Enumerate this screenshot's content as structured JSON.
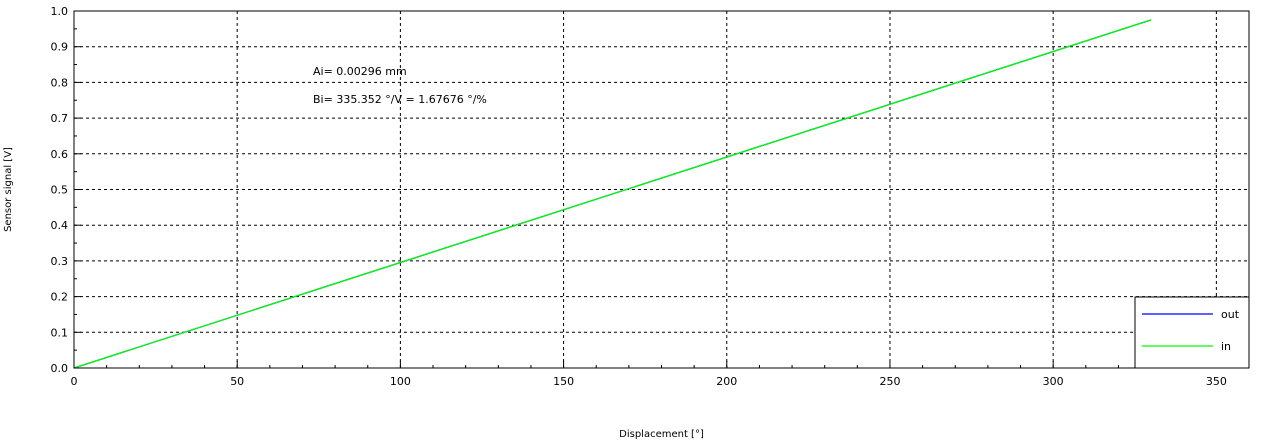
{
  "chart_data": {
    "type": "line",
    "xlabel": "Displacement [°]",
    "ylabel": "Sensor signal [V]",
    "xlim": [
      0,
      360
    ],
    "ylim": [
      0,
      1.0
    ],
    "xticks": [
      0,
      50,
      100,
      150,
      200,
      250,
      300,
      350
    ],
    "yticks": [
      0.0,
      0.1,
      0.2,
      0.3,
      0.4,
      0.5,
      0.6,
      0.7,
      0.8,
      0.9,
      1.0
    ],
    "xtick_labels": [
      "0",
      "50",
      "100",
      "150",
      "200",
      "250",
      "300",
      "350"
    ],
    "ytick_labels": [
      "0.0",
      "0.1",
      "0.2",
      "0.3",
      "0.4",
      "0.5",
      "0.6",
      "0.7",
      "0.8",
      "0.9",
      "1.0"
    ],
    "grid": true,
    "legend_position": "bottom-right",
    "annotations": [
      "Ai=  0.00296 mm",
      "Bi=  335.352 °/V = 1.67676 °/%"
    ],
    "series": [
      {
        "name": "out",
        "color": "#0000ff",
        "x": [
          0,
          330
        ],
        "y": [
          0,
          0.975
        ]
      },
      {
        "name": "in",
        "color": "#00ff00",
        "x": [
          0,
          330
        ],
        "y": [
          0,
          0.975
        ]
      }
    ]
  }
}
